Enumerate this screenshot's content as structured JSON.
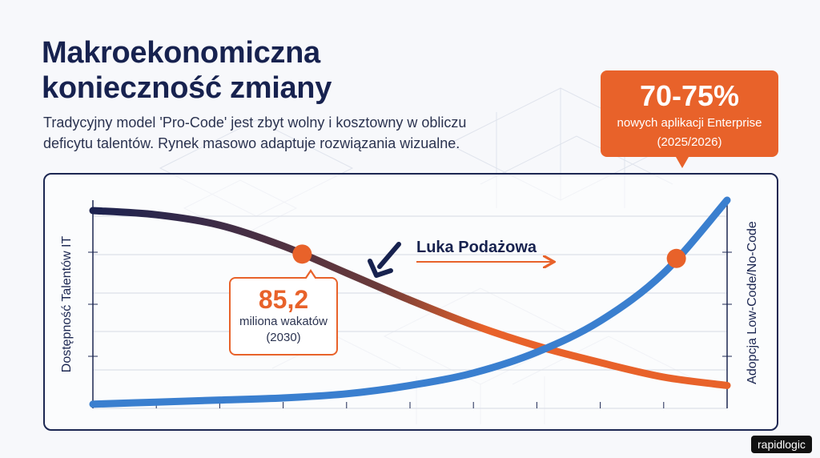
{
  "header": {
    "title_line1": "Makroekonomiczna",
    "title_line2": "konieczność zmiany",
    "subtitle_line1": "Tradycyjny model 'Pro-Code' jest zbyt wolny i kosztowny w obliczu",
    "subtitle_line2": "deficytu talentów. Rynek masowo adaptuje rozwiązania wizualne."
  },
  "chart_data": {
    "type": "line",
    "yaxis_left_label": "Dostępność Talentów IT",
    "yaxis_right_label": "Adopcja Low-Code/No-Code",
    "x": [
      0,
      10,
      20,
      30,
      40,
      50,
      60,
      70,
      80,
      90,
      100
    ],
    "series": [
      {
        "name": "Dostępność Talentów IT",
        "color": "gradient-navy-to-orange",
        "values": [
          95,
          93,
          88,
          78,
          65,
          52,
          40,
          30,
          22,
          15,
          11
        ]
      },
      {
        "name": "Adopcja Low-Code/No-Code",
        "color": "#3a7fcf",
        "values": [
          2,
          3,
          4,
          5,
          7,
          11,
          17,
          27,
          42,
          65,
          100
        ]
      }
    ],
    "gap_label": "Luka Podażowa",
    "annotations": [
      {
        "series": "Dostępność Talentów IT",
        "x": 33,
        "value": "85,2",
        "text_line1": "miliona wakatów",
        "text_line2": "(2030)"
      },
      {
        "series": "Adopcja Low-Code/No-Code",
        "x": 92,
        "value": "70-75%",
        "text_line1": "nowych aplikacji Enterprise",
        "text_line2": "(2025/2026)"
      }
    ]
  },
  "brand": "rapidlogic"
}
